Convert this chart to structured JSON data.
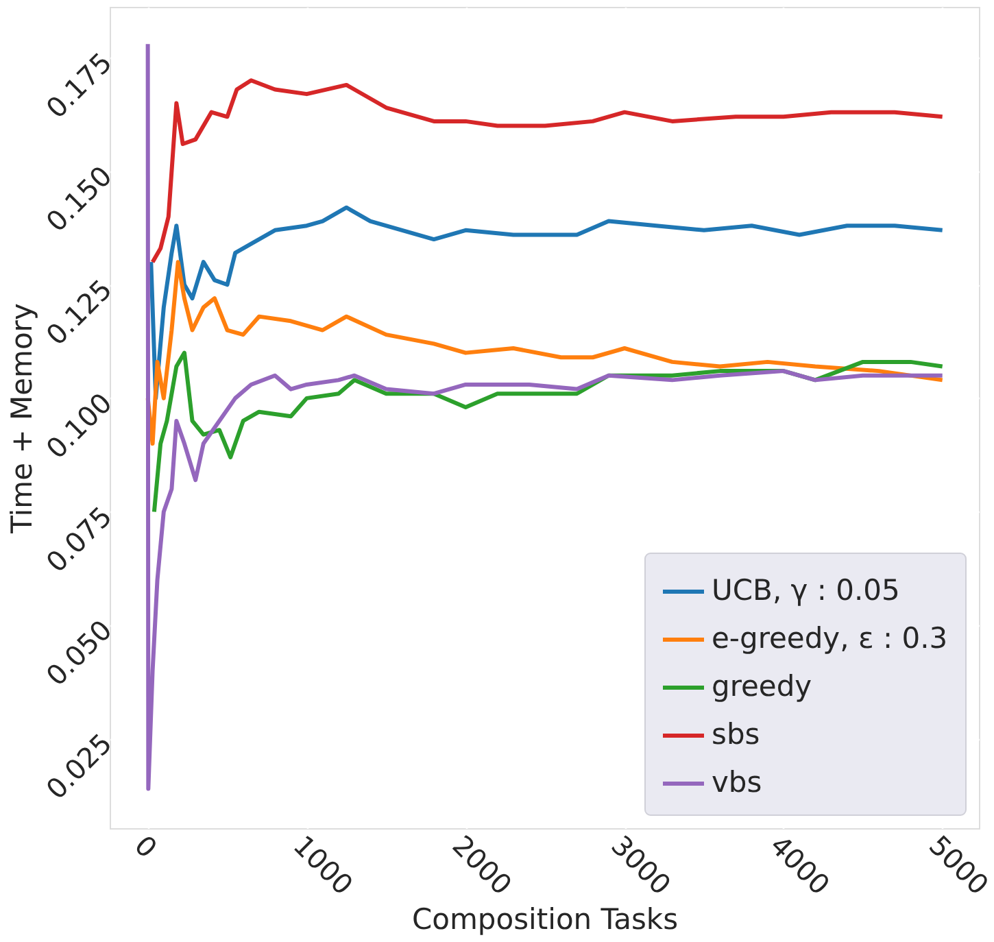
{
  "chart_data": {
    "type": "line",
    "xlabel": "Composition Tasks",
    "ylabel": "Time + Memory",
    "xlim": [
      -240,
      5230
    ],
    "ylim": [
      0.0053,
      0.1862
    ],
    "xticks": [
      0,
      1000,
      2000,
      3000,
      4000,
      5000
    ],
    "yticks": [
      {
        "value": 0.025,
        "label": "0.025"
      },
      {
        "value": 0.05,
        "label": "0.050"
      },
      {
        "value": 0.075,
        "label": "0.075"
      },
      {
        "value": 0.1,
        "label": "0.100"
      },
      {
        "value": 0.125,
        "label": "0.125"
      },
      {
        "value": 0.15,
        "label": "0.150"
      },
      {
        "value": 0.175,
        "label": "0.175"
      }
    ],
    "grid": true,
    "legend": "bottom right",
    "marker": "none",
    "line_style": "solid",
    "series": [
      {
        "name": "UCB, γ : 0.05",
        "color": "#1f77b4",
        "x": [
          20,
          50,
          100,
          150,
          180,
          230,
          280,
          350,
          420,
          500,
          550,
          650,
          800,
          1000,
          1100,
          1250,
          1400,
          1600,
          1800,
          2000,
          2300,
          2700,
          2900,
          3200,
          3500,
          3800,
          4100,
          4400,
          4700,
          5000
        ],
        "values": [
          0.13,
          0.1,
          0.12,
          0.132,
          0.138,
          0.125,
          0.122,
          0.13,
          0.126,
          0.125,
          0.132,
          0.134,
          0.137,
          0.138,
          0.139,
          0.142,
          0.139,
          0.137,
          0.135,
          0.137,
          0.136,
          0.136,
          0.139,
          0.138,
          0.137,
          0.138,
          0.136,
          0.138,
          0.138,
          0.137
        ]
      },
      {
        "name": "e-greedy, ε : 0.3",
        "color": "#ff7f0e",
        "x": [
          0,
          30,
          60,
          100,
          150,
          190,
          230,
          280,
          350,
          420,
          500,
          600,
          700,
          900,
          1100,
          1250,
          1500,
          1800,
          2000,
          2300,
          2600,
          2800,
          3000,
          3300,
          3600,
          3900,
          4200,
          4600,
          5000
        ],
        "values": [
          0.1,
          0.09,
          0.108,
          0.1,
          0.115,
          0.13,
          0.122,
          0.115,
          0.12,
          0.122,
          0.115,
          0.114,
          0.118,
          0.117,
          0.115,
          0.118,
          0.114,
          0.112,
          0.11,
          0.111,
          0.109,
          0.109,
          0.111,
          0.108,
          0.107,
          0.108,
          0.107,
          0.106,
          0.104
        ]
      },
      {
        "name": "greedy",
        "color": "#2ca02c",
        "x": [
          40,
          80,
          120,
          180,
          230,
          280,
          350,
          450,
          520,
          600,
          700,
          900,
          1000,
          1200,
          1300,
          1500,
          1800,
          2000,
          2200,
          2500,
          2700,
          2900,
          3300,
          3600,
          4000,
          4200,
          4500,
          4800,
          5000
        ],
        "values": [
          0.075,
          0.09,
          0.095,
          0.107,
          0.11,
          0.095,
          0.092,
          0.093,
          0.087,
          0.095,
          0.097,
          0.096,
          0.1,
          0.101,
          0.104,
          0.101,
          0.101,
          0.098,
          0.101,
          0.101,
          0.101,
          0.105,
          0.105,
          0.106,
          0.106,
          0.104,
          0.108,
          0.108,
          0.107
        ]
      },
      {
        "name": "sbs",
        "color": "#d62728",
        "x": [
          30,
          80,
          130,
          180,
          220,
          300,
          400,
          500,
          560,
          650,
          800,
          1000,
          1250,
          1500,
          1800,
          2000,
          2200,
          2500,
          2800,
          3000,
          3300,
          3700,
          4000,
          4300,
          4700,
          5000
        ],
        "values": [
          0.13,
          0.133,
          0.14,
          0.165,
          0.156,
          0.157,
          0.163,
          0.162,
          0.168,
          0.17,
          0.168,
          0.167,
          0.169,
          0.164,
          0.161,
          0.161,
          0.16,
          0.16,
          0.161,
          0.163,
          0.161,
          0.162,
          0.162,
          0.163,
          0.163,
          0.162
        ]
      },
      {
        "name": "vbs",
        "color": "#9467bd",
        "x": [
          0,
          3,
          30,
          60,
          100,
          150,
          180,
          230,
          300,
          350,
          450,
          550,
          650,
          800,
          900,
          1000,
          1200,
          1300,
          1500,
          1800,
          2000,
          2400,
          2700,
          2900,
          3300,
          3600,
          4000,
          4200,
          4500,
          5000
        ],
        "values": [
          0.178,
          0.014,
          0.04,
          0.06,
          0.075,
          0.08,
          0.095,
          0.09,
          0.082,
          0.09,
          0.095,
          0.1,
          0.103,
          0.105,
          0.102,
          0.103,
          0.104,
          0.105,
          0.102,
          0.101,
          0.103,
          0.103,
          0.102,
          0.105,
          0.104,
          0.105,
          0.106,
          0.104,
          0.105,
          0.105
        ]
      }
    ]
  }
}
